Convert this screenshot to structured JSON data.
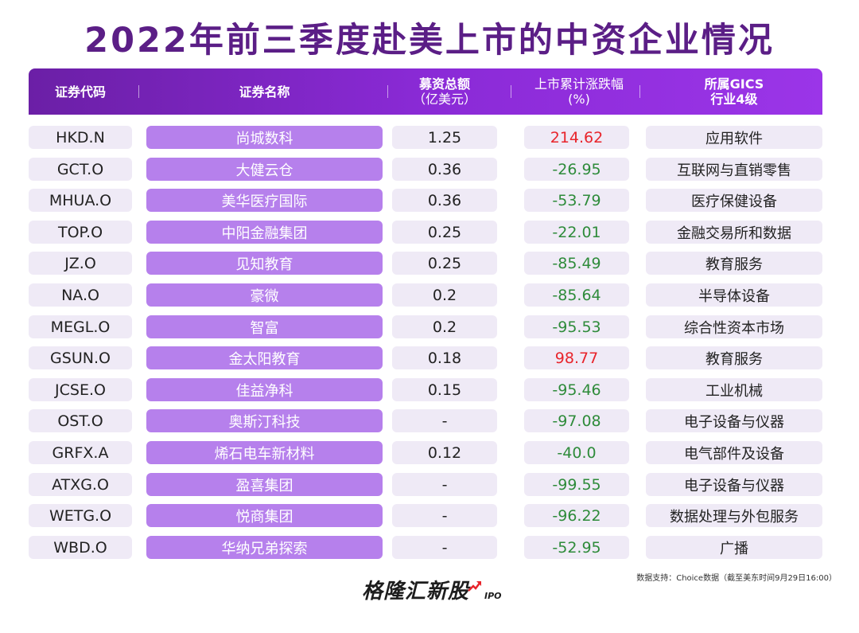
{
  "title": "2022年前三季度赴美上市的中资企业情况",
  "header": {
    "code": "证券代码",
    "name": "证券名称",
    "amount_line1": "募资总额",
    "amount_line2": "（亿美元）",
    "change_line1": "上市累计涨跌幅",
    "change_line2": "(%)",
    "industry_line1": "所属GICS",
    "industry_line2": "行业4级"
  },
  "colors": {
    "header_start": "#6b1fa6",
    "header_end": "#9b35e8",
    "name_cell": "#b680ec",
    "cell_bg": "#efeaf6",
    "positive": "#e8242b",
    "negative": "#2e8b3a"
  },
  "rows": [
    {
      "code": "HKD.N",
      "name": "尚城数科",
      "amount": "1.25",
      "change": "214.62",
      "dir": "pos",
      "industry": "应用软件"
    },
    {
      "code": "GCT.O",
      "name": "大健云仓",
      "amount": "0.36",
      "change": "-26.95",
      "dir": "neg",
      "industry": "互联网与直销零售"
    },
    {
      "code": "MHUA.O",
      "name": "美华医疗国际",
      "amount": "0.36",
      "change": "-53.79",
      "dir": "neg",
      "industry": "医疗保健设备"
    },
    {
      "code": "TOP.O",
      "name": "中阳金融集团",
      "amount": "0.25",
      "change": "-22.01",
      "dir": "neg",
      "industry": "金融交易所和数据"
    },
    {
      "code": "JZ.O",
      "name": "见知教育",
      "amount": "0.25",
      "change": "-85.49",
      "dir": "neg",
      "industry": "教育服务"
    },
    {
      "code": "NA.O",
      "name": "豪微",
      "amount": "0.2",
      "change": "-85.64",
      "dir": "neg",
      "industry": "半导体设备"
    },
    {
      "code": "MEGL.O",
      "name": "智富",
      "amount": "0.2",
      "change": "-95.53",
      "dir": "neg",
      "industry": "综合性资本市场"
    },
    {
      "code": "GSUN.O",
      "name": "金太阳教育",
      "amount": "0.18",
      "change": "98.77",
      "dir": "pos",
      "industry": "教育服务"
    },
    {
      "code": "JCSE.O",
      "name": "佳益净科",
      "amount": "0.15",
      "change": "-95.46",
      "dir": "neg",
      "industry": "工业机械"
    },
    {
      "code": "OST.O",
      "name": "奥斯汀科技",
      "amount": "-",
      "change": "-97.08",
      "dir": "neg",
      "industry": "电子设备与仪器"
    },
    {
      "code": "GRFX.A",
      "name": "烯石电车新材料",
      "amount": "0.12",
      "change": "-40.0",
      "dir": "neg",
      "industry": "电气部件及设备"
    },
    {
      "code": "ATXG.O",
      "name": "盈喜集团",
      "amount": "-",
      "change": "-99.55",
      "dir": "neg",
      "industry": "电子设备与仪器"
    },
    {
      "code": "WETG.O",
      "name": "悦商集团",
      "amount": "-",
      "change": "-96.22",
      "dir": "neg",
      "industry": "数据处理与外包服务"
    },
    {
      "code": "WBD.O",
      "name": "华纳兄弟探索",
      "amount": "-",
      "change": "-52.95",
      "dir": "neg",
      "industry": "广播"
    }
  ],
  "source": "数据支持：Choice数据（截至美东时间9月29日16:00）",
  "logo": {
    "text": "格隆汇新股",
    "sub": "IPO",
    "icon": "upward-arrow-icon"
  }
}
